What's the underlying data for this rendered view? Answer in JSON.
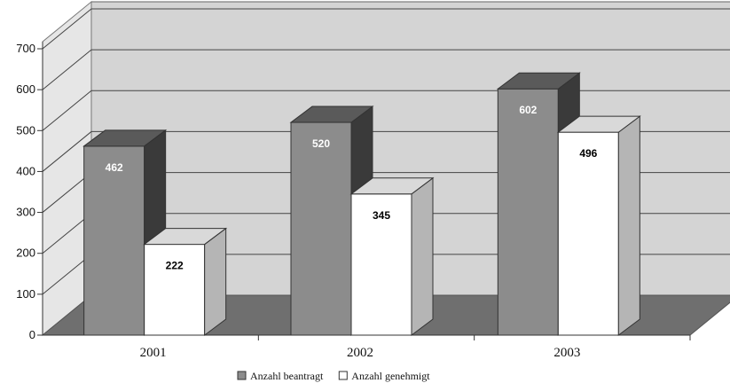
{
  "chart_data": {
    "type": "bar",
    "categories": [
      "2001",
      "2002",
      "2003"
    ],
    "series": [
      {
        "name": "Anzahl beantragt",
        "values": [
          462,
          520,
          602
        ],
        "color": "#8c8c8c"
      },
      {
        "name": "Anzahl genehmigt",
        "values": [
          222,
          345,
          496
        ],
        "color": "#ffffff"
      }
    ],
    "yticks": [
      "0",
      "100",
      "200",
      "300",
      "400",
      "500",
      "600",
      "700"
    ],
    "ylim": [
      0,
      700
    ],
    "grid": true,
    "legend": "bottom",
    "view": "3d",
    "colors": {
      "back_wall": "#d4d4d4",
      "floor": "#6f6f6f",
      "gridline": "#444444"
    }
  }
}
